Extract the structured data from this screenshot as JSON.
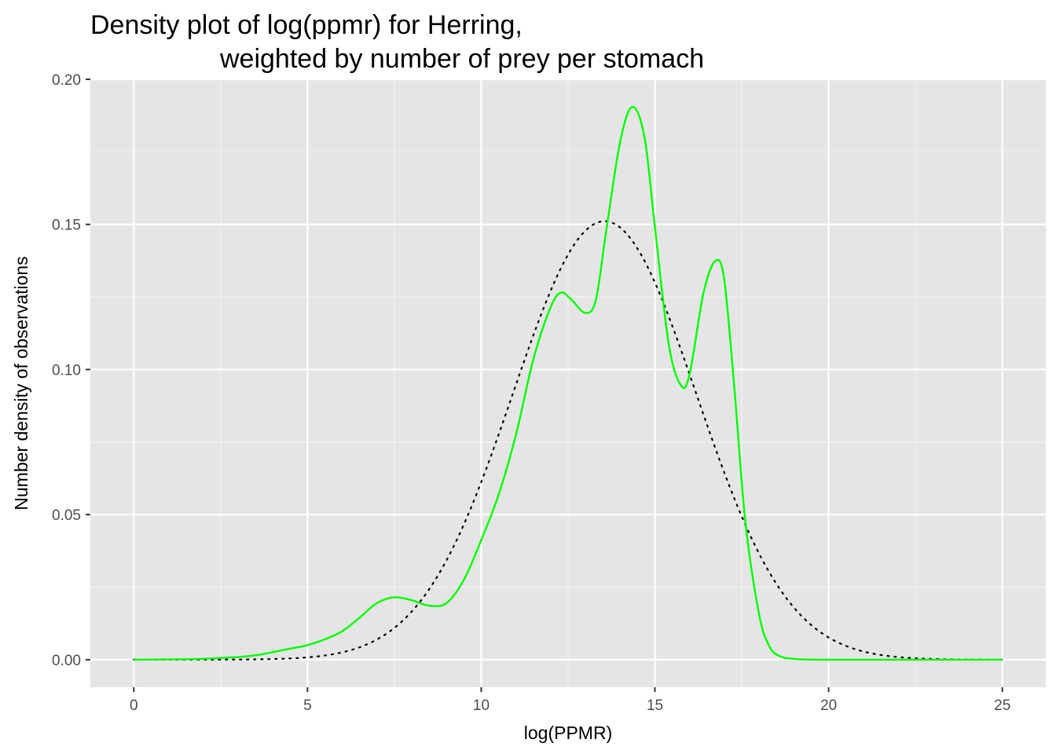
{
  "chart_data": {
    "type": "line",
    "title_line1": "Density plot of log(ppmr) for Herring,",
    "title_line2": "weighted by number of prey per stomach",
    "xlabel": "log(PPMR)",
    "ylabel": "Number density of observations",
    "xlim": [
      -1.25,
      26.25
    ],
    "ylim": [
      -0.0095,
      0.2
    ],
    "x_ticks": [
      0,
      5,
      10,
      15,
      20,
      25
    ],
    "x_tick_labels": [
      "0",
      "5",
      "10",
      "15",
      "20",
      "25"
    ],
    "y_ticks": [
      0.0,
      0.05,
      0.1,
      0.15,
      0.2
    ],
    "y_tick_labels": [
      "0.00",
      "0.05",
      "0.10",
      "0.15",
      "0.20"
    ],
    "grid": true,
    "panel_background": "#e5e5e5",
    "series": [
      {
        "style": "solid",
        "color": "#00ff00",
        "points": [
          [
            0,
            0.0
          ],
          [
            1,
            0.0001
          ],
          [
            2,
            0.0003
          ],
          [
            3,
            0.0009
          ],
          [
            3.5,
            0.0015
          ],
          [
            4,
            0.0026
          ],
          [
            4.5,
            0.0038
          ],
          [
            5,
            0.005
          ],
          [
            5.5,
            0.007
          ],
          [
            6,
            0.0098
          ],
          [
            6.5,
            0.0145
          ],
          [
            7,
            0.0195
          ],
          [
            7.5,
            0.0215
          ],
          [
            8,
            0.0205
          ],
          [
            8.5,
            0.0186
          ],
          [
            9,
            0.0195
          ],
          [
            9.5,
            0.0275
          ],
          [
            10,
            0.0412
          ],
          [
            10.5,
            0.0568
          ],
          [
            11,
            0.0775
          ],
          [
            11.5,
            0.1035
          ],
          [
            12,
            0.1215
          ],
          [
            12.3,
            0.1265
          ],
          [
            12.6,
            0.124
          ],
          [
            13,
            0.1195
          ],
          [
            13.3,
            0.124
          ],
          [
            13.6,
            0.148
          ],
          [
            14,
            0.1785
          ],
          [
            14.35,
            0.1905
          ],
          [
            14.7,
            0.18
          ],
          [
            15,
            0.149
          ],
          [
            15.4,
            0.1085
          ],
          [
            15.75,
            0.0945
          ],
          [
            16,
            0.0985
          ],
          [
            16.4,
            0.1265
          ],
          [
            16.75,
            0.1375
          ],
          [
            17,
            0.1305
          ],
          [
            17.3,
            0.0915
          ],
          [
            17.6,
            0.048
          ],
          [
            18,
            0.0155
          ],
          [
            18.3,
            0.0045
          ],
          [
            18.6,
            0.0012
          ],
          [
            19,
            0.0003
          ],
          [
            20,
            0.0
          ],
          [
            25,
            0.0
          ]
        ]
      },
      {
        "style": "dotted",
        "color": "#000000",
        "normal_mean": 13.55,
        "normal_sd": 2.64,
        "x_range": [
          0,
          25
        ]
      }
    ]
  }
}
